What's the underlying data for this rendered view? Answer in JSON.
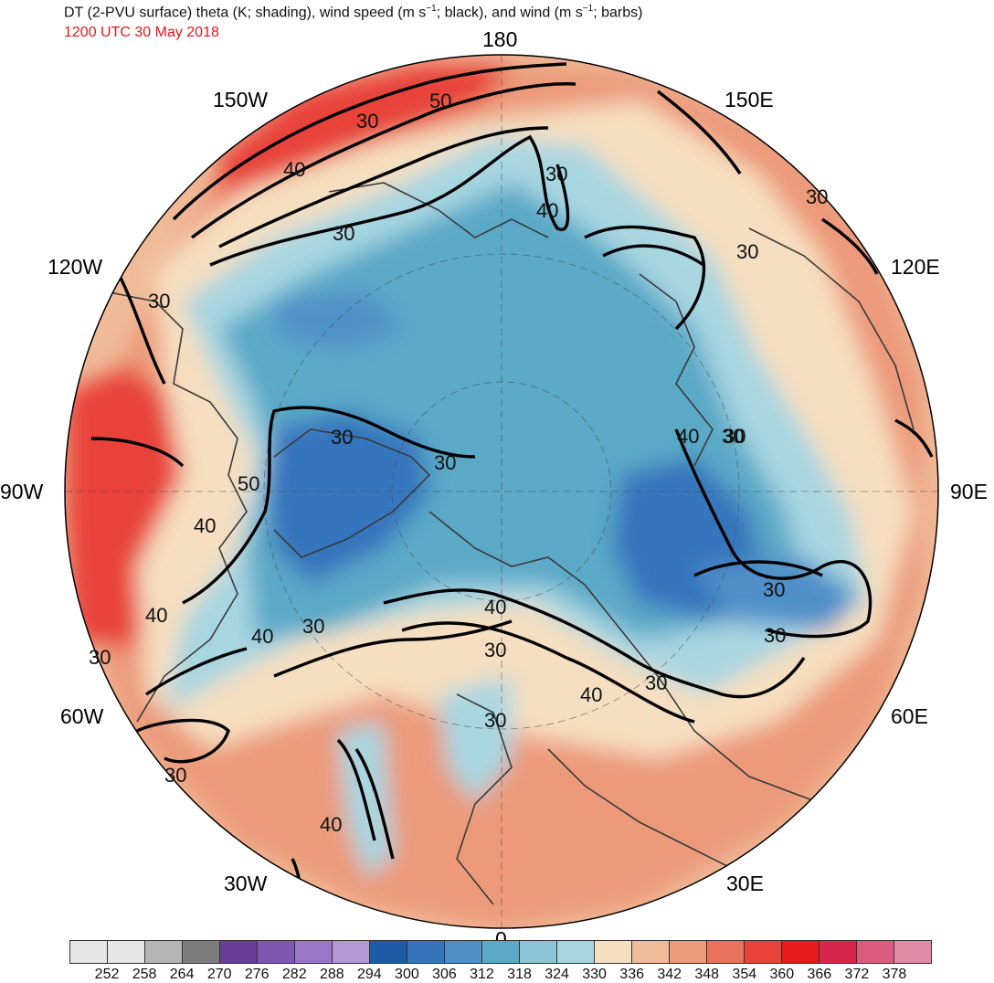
{
  "title": {
    "prefix": "DT (2-PVU surface) theta (K; shading), wind speed (m s",
    "sup1": "−1",
    "middle": "; black), and wind (m s",
    "sup2": "−1",
    "suffix": "; barbs)"
  },
  "subtitle": "1200 UTC 30 May 2018",
  "longitude_labels": [
    {
      "label": "180",
      "lon": 180
    },
    {
      "label": "150E",
      "lon": 150
    },
    {
      "label": "120E",
      "lon": 120
    },
    {
      "label": "90E",
      "lon": 90
    },
    {
      "label": "60E",
      "lon": 60
    },
    {
      "label": "30E",
      "lon": 30
    },
    {
      "label": "0",
      "lon": 0
    },
    {
      "label": "30W",
      "lon": -30
    },
    {
      "label": "60W",
      "lon": -60
    },
    {
      "label": "90W",
      "lon": -90
    },
    {
      "label": "120W",
      "lon": -120
    },
    {
      "label": "150W",
      "lon": -150
    }
  ],
  "contour_labels": [
    "50",
    "30",
    "40",
    "30",
    "30",
    "40",
    "30",
    "30",
    "30",
    "50",
    "40",
    "30",
    "40",
    "40",
    "30",
    "30",
    "40",
    "30",
    "40",
    "30",
    "40",
    "30",
    "30",
    "30",
    "30",
    "30",
    "40",
    "30",
    "30"
  ],
  "colorbar": {
    "units": "K",
    "labels": [
      "252",
      "258",
      "264",
      "270",
      "276",
      "282",
      "288",
      "294",
      "300",
      "306",
      "312",
      "318",
      "324",
      "330",
      "336",
      "342",
      "348",
      "354",
      "360",
      "366",
      "372",
      "378"
    ],
    "colors": [
      "#e6e6e6",
      "#b4b4b4",
      "#7d7d7d",
      "#6a3d9a",
      "#7f56b0",
      "#9a76c6",
      "#b099d6",
      "#1f5aa6",
      "#3575bd",
      "#4f8fc9",
      "#5aa9c7",
      "#8cc4d8",
      "#a7d6e1",
      "#f6dfc0",
      "#f0bb98",
      "#ec9a7a",
      "#e8725c",
      "#e8423a",
      "#e41a1c",
      "#d9254c",
      "#dd5a80",
      "#e28aa6"
    ]
  },
  "colors": {
    "title": "#111111",
    "date": "#e8141c",
    "map_border": "#000000",
    "coast": "#3b3b3b",
    "contour": "#000000"
  }
}
